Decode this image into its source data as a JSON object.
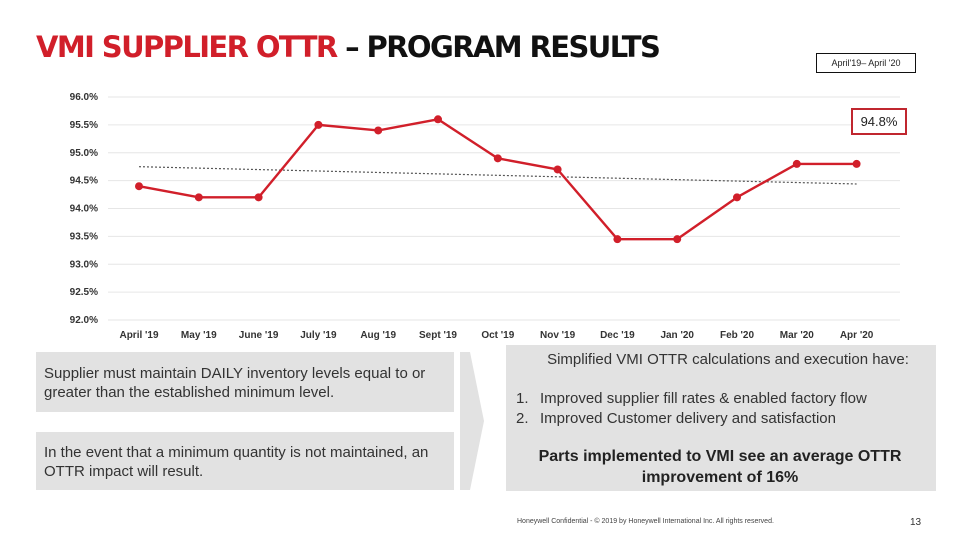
{
  "header": {
    "title_red": "VMI SUPPLIER OTTR",
    "title_black": " – PROGRAM RESULTS",
    "date_range": "April'19– April '20"
  },
  "callout": {
    "label": "94.8%"
  },
  "chart_data": {
    "type": "line",
    "categories": [
      "April '19",
      "May '19",
      "June '19",
      "July '19",
      "Aug '19",
      "Sept '19",
      "Oct '19",
      "Nov '19",
      "Dec '19",
      "Jan '20",
      "Feb '20",
      "Mar '20",
      "Apr '20"
    ],
    "values": [
      94.4,
      94.2,
      94.2,
      95.5,
      95.4,
      95.6,
      94.9,
      94.7,
      93.45,
      93.45,
      94.2,
      94.8,
      94.8
    ],
    "trend": [
      94.75,
      94.44
    ],
    "ylim": [
      92.0,
      96.0
    ],
    "yticks": [
      "96.0%",
      "95.5%",
      "95.0%",
      "94.5%",
      "94.0%",
      "93.5%",
      "93.0%",
      "92.5%",
      "92.0%"
    ],
    "ytick_values": [
      96.0,
      95.5,
      95.0,
      94.5,
      94.0,
      93.5,
      93.0,
      92.5,
      92.0
    ],
    "grid": true,
    "line_color": "#d11f2a",
    "trend_color": "#555555"
  },
  "left_boxes": [
    "Supplier must maintain DAILY inventory levels equal to or greater than the established minimum level.",
    "In the event that a minimum quantity is not maintained, an OTTR impact will result."
  ],
  "right_box": {
    "intro": "Simplified VMI OTTR calculations and execution have:",
    "items": [
      {
        "num": "1.",
        "text": "Improved supplier fill rates & enabled factory flow"
      },
      {
        "num": "2.",
        "text": "Improved Customer delivery and satisfaction"
      }
    ],
    "bold": "Parts implemented to VMI see an average OTTR improvement of 16%"
  },
  "footer": {
    "text": "Honeywell Confidential - © 2019 by Honeywell International Inc. All rights reserved.",
    "page": "13"
  }
}
